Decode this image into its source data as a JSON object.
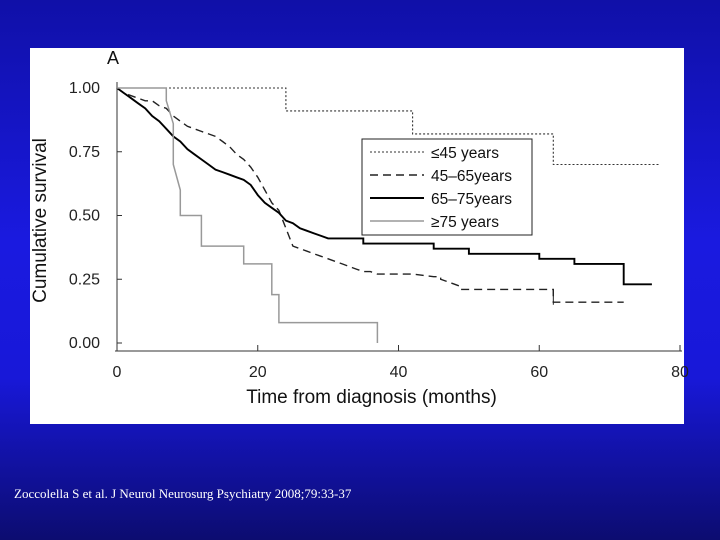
{
  "chart_data": {
    "type": "line",
    "panel_label": "A",
    "xlabel": "Time from diagnosis (months)",
    "ylabel": "Cumulative survival",
    "xlim": [
      0,
      80
    ],
    "ylim": [
      0,
      1
    ],
    "x_ticks": [
      "0",
      "20",
      "40",
      "60",
      "80"
    ],
    "y_ticks": [
      "0.00",
      "0.25",
      "0.50",
      "0.75",
      "1.00"
    ],
    "legend_position": "right",
    "series": [
      {
        "name": "≤45 years",
        "dash": "2,2",
        "color": "#333333",
        "width": 1.1,
        "points": [
          [
            0,
            1.0
          ],
          [
            24,
            1.0
          ],
          [
            24,
            0.91
          ],
          [
            42,
            0.91
          ],
          [
            42,
            0.82
          ],
          [
            62,
            0.82
          ],
          [
            62,
            0.7
          ],
          [
            77,
            0.7
          ]
        ]
      },
      {
        "name": "45–65years",
        "dash": "8,5",
        "color": "#222222",
        "width": 1.4,
        "points": [
          [
            0,
            1.0
          ],
          [
            1,
            0.98
          ],
          [
            2,
            0.97
          ],
          [
            3,
            0.96
          ],
          [
            4,
            0.95
          ],
          [
            5,
            0.95
          ],
          [
            6,
            0.93
          ],
          [
            7,
            0.92
          ],
          [
            8,
            0.89
          ],
          [
            9,
            0.87
          ],
          [
            10,
            0.85
          ],
          [
            11,
            0.84
          ],
          [
            12,
            0.83
          ],
          [
            13,
            0.82
          ],
          [
            14,
            0.81
          ],
          [
            15,
            0.79
          ],
          [
            16,
            0.77
          ],
          [
            17,
            0.74
          ],
          [
            18,
            0.72
          ],
          [
            19,
            0.69
          ],
          [
            20,
            0.65
          ],
          [
            21,
            0.6
          ],
          [
            22,
            0.55
          ],
          [
            23,
            0.52
          ],
          [
            24,
            0.45
          ],
          [
            25,
            0.38
          ],
          [
            26,
            0.37
          ],
          [
            27,
            0.36
          ],
          [
            28,
            0.35
          ],
          [
            29,
            0.34
          ],
          [
            30,
            0.33
          ],
          [
            31,
            0.32
          ],
          [
            32,
            0.31
          ],
          [
            33,
            0.3
          ],
          [
            34,
            0.29
          ],
          [
            35,
            0.28
          ],
          [
            36,
            0.28
          ],
          [
            37,
            0.27
          ],
          [
            42,
            0.27
          ],
          [
            45,
            0.26
          ],
          [
            46,
            0.26
          ],
          [
            46,
            0.25
          ],
          [
            47,
            0.24
          ],
          [
            48,
            0.23
          ],
          [
            49,
            0.22
          ],
          [
            49,
            0.21
          ],
          [
            62,
            0.21
          ],
          [
            62,
            0.16
          ],
          [
            72,
            0.16
          ]
        ]
      },
      {
        "name": "65–75years",
        "dash": "",
        "color": "#000000",
        "width": 1.9,
        "points": [
          [
            0,
            1.0
          ],
          [
            1,
            0.98
          ],
          [
            2,
            0.96
          ],
          [
            3,
            0.94
          ],
          [
            4,
            0.92
          ],
          [
            5,
            0.89
          ],
          [
            6,
            0.87
          ],
          [
            7,
            0.84
          ],
          [
            8,
            0.81
          ],
          [
            9,
            0.79
          ],
          [
            10,
            0.76
          ],
          [
            11,
            0.74
          ],
          [
            12,
            0.72
          ],
          [
            13,
            0.7
          ],
          [
            14,
            0.68
          ],
          [
            15,
            0.67
          ],
          [
            16,
            0.66
          ],
          [
            17,
            0.65
          ],
          [
            18,
            0.64
          ],
          [
            19,
            0.62
          ],
          [
            20,
            0.58
          ],
          [
            21,
            0.55
          ],
          [
            22,
            0.53
          ],
          [
            23,
            0.51
          ],
          [
            24,
            0.48
          ],
          [
            25,
            0.47
          ],
          [
            26,
            0.45
          ],
          [
            27,
            0.44
          ],
          [
            28,
            0.43
          ],
          [
            29,
            0.42
          ],
          [
            30,
            0.41
          ],
          [
            35,
            0.41
          ],
          [
            35,
            0.39
          ],
          [
            45,
            0.39
          ],
          [
            45,
            0.37
          ],
          [
            50,
            0.37
          ],
          [
            50,
            0.35
          ],
          [
            60,
            0.35
          ],
          [
            60,
            0.33
          ],
          [
            65,
            0.33
          ],
          [
            65,
            0.31
          ],
          [
            72,
            0.31
          ],
          [
            72,
            0.23
          ],
          [
            76,
            0.23
          ]
        ]
      },
      {
        "name": "≥75 years",
        "dash": "",
        "color": "#999999",
        "width": 1.5,
        "points": [
          [
            0,
            1.0
          ],
          [
            7,
            1.0
          ],
          [
            7,
            0.95
          ],
          [
            8,
            0.86
          ],
          [
            8,
            0.7
          ],
          [
            9,
            0.6
          ],
          [
            9,
            0.5
          ],
          [
            12,
            0.5
          ],
          [
            12,
            0.38
          ],
          [
            18,
            0.38
          ],
          [
            18,
            0.31
          ],
          [
            22,
            0.31
          ],
          [
            22,
            0.19
          ],
          [
            23,
            0.19
          ],
          [
            23,
            0.08
          ],
          [
            37,
            0.08
          ],
          [
            37,
            0.0
          ]
        ]
      }
    ]
  },
  "citation": "Zoccolella S et al. J Neurol Neurosurg Psychiatry 2008;79:33-37",
  "colors": {
    "background_top": "#1010a8",
    "background_mid": "#1a1ae0",
    "panel": "#ffffff",
    "citation_text": "#ffffff"
  }
}
